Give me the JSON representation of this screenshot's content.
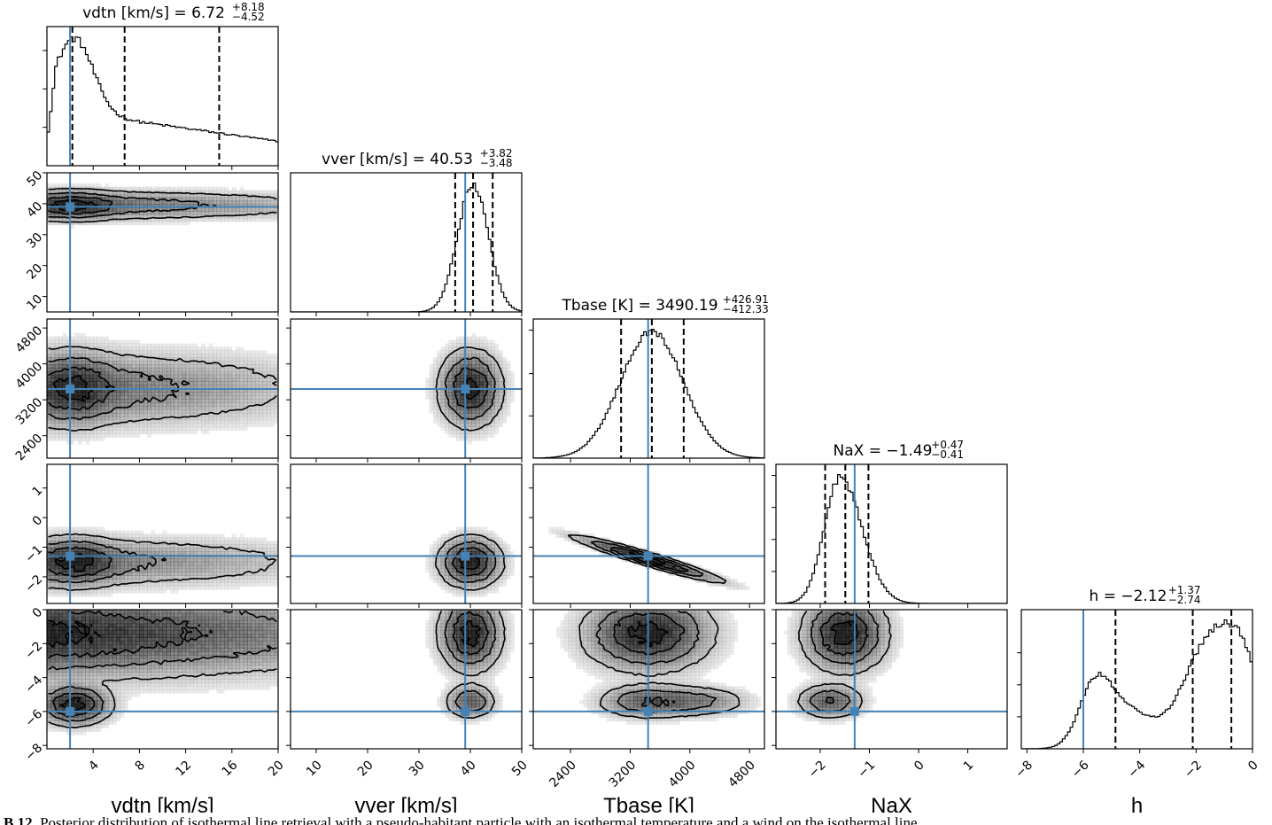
{
  "chart_data": {
    "type": "corner",
    "parameters": [
      {
        "key": "vdtn",
        "label": "vdtn [km/s]",
        "title": "vdtn [km/s] = 6.72",
        "sup": "+8.18",
        "sub": "−4.52",
        "range": [
          0,
          20
        ],
        "ticks": [
          4,
          8,
          12,
          16,
          20
        ],
        "tick_labels": [
          "4",
          "8",
          "12",
          "16",
          "20"
        ],
        "median": 6.72,
        "q16": 2.2,
        "q84": 14.9,
        "truth": 2.0
      },
      {
        "key": "vver",
        "label": "vver [km/s]",
        "title": "vver [km/s] = 40.53",
        "sup": "+3.82",
        "sub": "−3.48",
        "range": [
          5,
          50
        ],
        "ticks": [
          10,
          20,
          30,
          40,
          50
        ],
        "tick_labels": [
          "10",
          "20",
          "30",
          "40",
          "50"
        ],
        "median": 40.53,
        "q16": 37.05,
        "q84": 44.35,
        "truth": 39.0
      },
      {
        "key": "Tbase",
        "label": "Tbase [K]",
        "title": "Tbase [K] = 3490.19",
        "sup": "+426.91",
        "sub": "−412.33",
        "range": [
          1900,
          5000
        ],
        "ticks": [
          2400,
          3200,
          4000,
          4800
        ],
        "tick_labels": [
          "2400",
          "3200",
          "4000",
          "4800"
        ],
        "median": 3490.19,
        "q16": 3077.86,
        "q84": 3917.1,
        "truth": 3440
      },
      {
        "key": "NaX",
        "label": "NaX",
        "title": "NaX = −1.49",
        "sup": "+0.47",
        "sub": "−0.41",
        "range": [
          -2.9,
          1.8
        ],
        "ticks": [
          -2,
          -1,
          0,
          1
        ],
        "tick_labels": [
          "−2",
          "−1",
          "0",
          "1"
        ],
        "median": -1.49,
        "q16": -1.9,
        "q84": -1.02,
        "truth": -1.3
      },
      {
        "key": "h",
        "label": "h",
        "title": "h = −2.12",
        "sup": "+1.37",
        "sub": "−2.74",
        "range": [
          -8.2,
          0
        ],
        "ticks": [
          -8,
          -6,
          -4,
          -2,
          0
        ],
        "tick_labels": [
          "−8",
          "−6",
          "−4",
          "−2",
          "0"
        ],
        "median": -2.12,
        "q16": -4.86,
        "q84": -0.75,
        "truth": -6.0
      }
    ],
    "diag_ticks": [
      [
        0.3,
        0.6,
        0.9
      ],
      [],
      [
        0.33,
        0.66,
        1.0
      ],
      [
        0.25,
        0.5,
        0.75,
        1.0
      ],
      [
        0.25,
        0.5,
        0.75
      ]
    ],
    "row_tick_labels": {
      "vver": [
        "10",
        "20",
        "30",
        "40",
        "50"
      ],
      "Tbase": [
        "2400",
        "3200",
        "4000",
        "4800"
      ],
      "NaX": [
        "−2",
        "−1",
        "0",
        "1"
      ],
      "h": [
        "−8",
        "−6",
        "−4",
        "−2",
        "0"
      ]
    },
    "colors": {
      "truth": "#4682b4",
      "contour": "#000000",
      "density": "#000000"
    }
  },
  "caption": {
    "label": "B.12.",
    "text": " Posterior distribution of isothermal line retrieval with a pseudo-habitant particle with an isothermal temperature and a wind on the isothermal line"
  }
}
